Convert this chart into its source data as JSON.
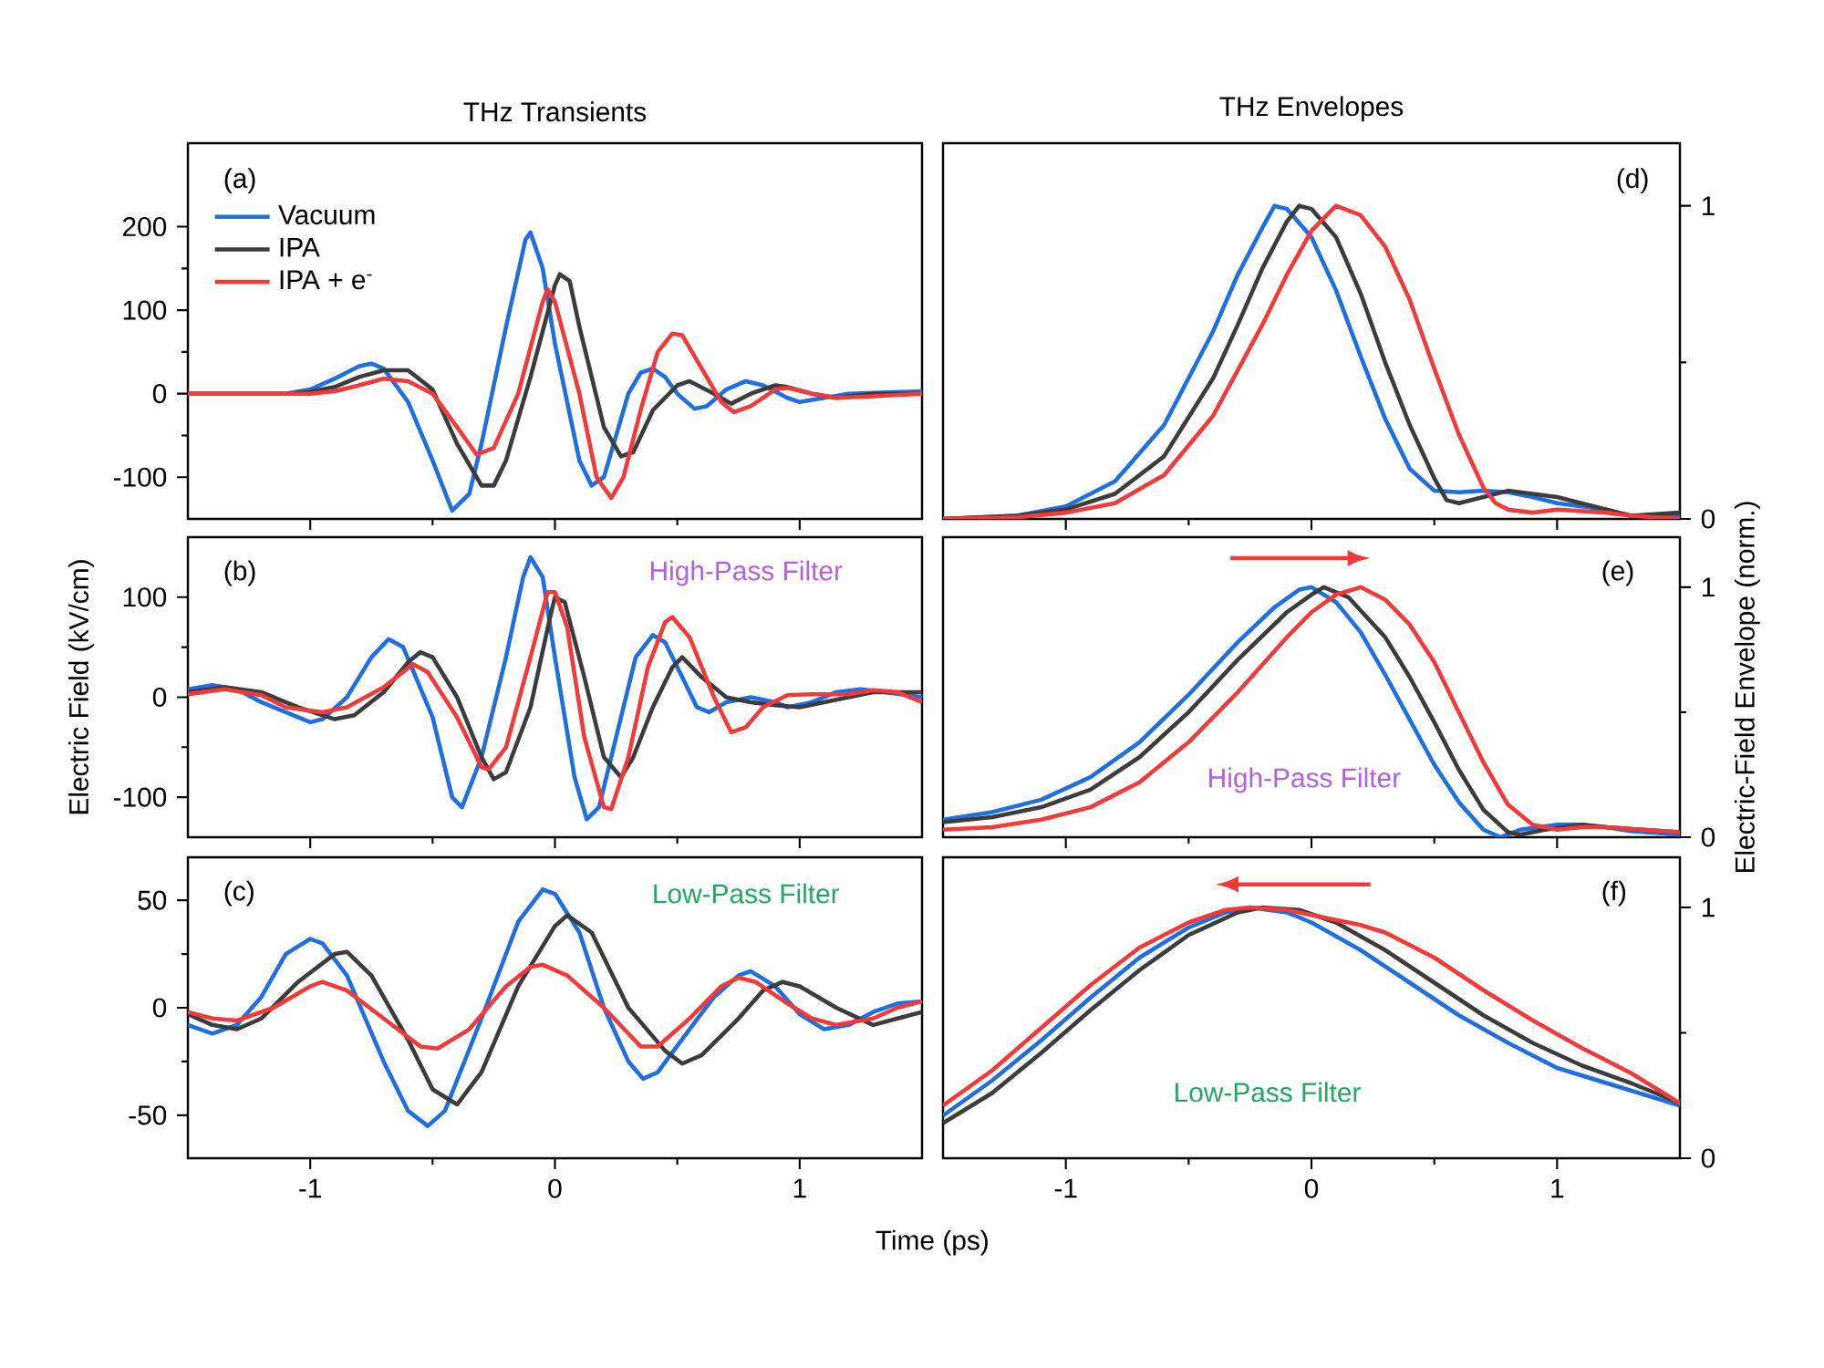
{
  "chart_data": [
    {
      "type": "line",
      "title": "THz Transients",
      "legend": "top left",
      "tick_labels": "y",
      "xlim": [
        -1.5,
        1.5
      ],
      "xticks": [
        -1,
        0,
        1
      ],
      "ylim": [
        -150,
        300
      ],
      "yticks": [
        -100,
        0,
        100,
        200
      ],
      "annotations": [
        "(a)"
      ],
      "series": [
        {
          "name": "Vacuum",
          "color": "#1f6fe0",
          "x": [
            -1.5,
            -1.1,
            -1.0,
            -0.9,
            -0.8,
            -0.75,
            -0.7,
            -0.6,
            -0.5,
            -0.42,
            -0.35,
            -0.3,
            -0.2,
            -0.12,
            -0.1,
            -0.05,
            0,
            0.1,
            0.15,
            0.2,
            0.3,
            0.35,
            0.4,
            0.45,
            0.5,
            0.57,
            0.62,
            0.7,
            0.78,
            0.85,
            0.95,
            1.0,
            1.1,
            1.2,
            1.5
          ],
          "values": [
            0,
            0,
            5,
            18,
            33,
            36,
            30,
            -10,
            -80,
            -140,
            -120,
            -60,
            80,
            185,
            193,
            150,
            60,
            -80,
            -110,
            -100,
            0,
            25,
            30,
            20,
            0,
            -18,
            -15,
            5,
            15,
            10,
            -5,
            -10,
            -5,
            0,
            3
          ]
        },
        {
          "name": "IPA",
          "color": "#3c3c3c",
          "x": [
            -1.5,
            -1.1,
            -1.0,
            -0.9,
            -0.8,
            -0.7,
            -0.6,
            -0.5,
            -0.4,
            -0.3,
            -0.25,
            -0.2,
            -0.1,
            0,
            0.02,
            0.06,
            0.1,
            0.2,
            0.27,
            0.32,
            0.4,
            0.5,
            0.55,
            0.65,
            0.72,
            0.8,
            0.9,
            0.95,
            1.05,
            1.15,
            1.3,
            1.5
          ],
          "values": [
            0,
            0,
            2,
            8,
            20,
            28,
            28,
            5,
            -60,
            -110,
            -110,
            -80,
            20,
            130,
            143,
            135,
            80,
            -40,
            -75,
            -70,
            -20,
            10,
            15,
            0,
            -12,
            0,
            10,
            8,
            0,
            -5,
            0,
            0
          ]
        },
        {
          "name": "IPA + e$^{-}$",
          "color": "#f23a3a",
          "x": [
            -1.5,
            -1.1,
            -1.0,
            -0.9,
            -0.8,
            -0.7,
            -0.6,
            -0.5,
            -0.4,
            -0.32,
            -0.25,
            -0.15,
            -0.05,
            -0.03,
            0,
            0.1,
            0.17,
            0.23,
            0.28,
            0.35,
            0.42,
            0.48,
            0.52,
            0.6,
            0.68,
            0.73,
            0.8,
            0.9,
            0.95,
            1.05,
            1.15,
            1.3,
            1.5
          ],
          "values": [
            0,
            0,
            0,
            3,
            10,
            18,
            15,
            0,
            -40,
            -73,
            -65,
            0,
            110,
            125,
            110,
            0,
            -100,
            -125,
            -100,
            -20,
            50,
            72,
            70,
            30,
            -10,
            -22,
            -15,
            5,
            7,
            0,
            -5,
            -3,
            0
          ]
        }
      ]
    },
    {
      "type": "line",
      "ylabel": "Electric Field (kV/cm)",
      "tick_labels": "y",
      "xlim": [
        -1.5,
        1.5
      ],
      "xticks": [
        -1,
        0,
        1
      ],
      "ylim": [
        -140,
        160
      ],
      "yticks": [
        -100,
        0,
        100
      ],
      "annotations": [
        "(b)",
        "High-Pass Filter"
      ],
      "series": [
        {
          "color": "#1f6fe0",
          "x": [
            -1.5,
            -1.4,
            -1.3,
            -1.2,
            -1.0,
            -0.95,
            -0.85,
            -0.75,
            -0.68,
            -0.62,
            -0.5,
            -0.42,
            -0.38,
            -0.3,
            -0.2,
            -0.13,
            -0.1,
            -0.05,
            0,
            0.08,
            0.13,
            0.18,
            0.25,
            0.33,
            0.4,
            0.45,
            0.52,
            0.58,
            0.63,
            0.7,
            0.8,
            0.9,
            0.95,
            1.05,
            1.15,
            1.25,
            1.35,
            1.5
          ],
          "values": [
            8,
            12,
            8,
            -5,
            -25,
            -22,
            0,
            40,
            58,
            50,
            -20,
            -100,
            -110,
            -60,
            40,
            120,
            140,
            120,
            40,
            -80,
            -122,
            -110,
            -40,
            40,
            62,
            55,
            20,
            -10,
            -15,
            -5,
            0,
            -5,
            -10,
            -5,
            5,
            8,
            5,
            0
          ]
        },
        {
          "color": "#3c3c3c",
          "x": [
            -1.5,
            -1.35,
            -1.2,
            -1.05,
            -0.9,
            -0.82,
            -0.7,
            -0.6,
            -0.55,
            -0.5,
            -0.4,
            -0.3,
            -0.25,
            -0.2,
            -0.1,
            -0.02,
            0,
            0.04,
            0.12,
            0.2,
            0.27,
            0.32,
            0.4,
            0.48,
            0.52,
            0.6,
            0.7,
            0.8,
            0.9,
            1.0,
            1.1,
            1.2,
            1.3,
            1.5
          ],
          "values": [
            5,
            10,
            5,
            -10,
            -22,
            -18,
            5,
            35,
            45,
            40,
            0,
            -60,
            -82,
            -75,
            -10,
            80,
            100,
            95,
            20,
            -60,
            -80,
            -60,
            -10,
            30,
            40,
            20,
            0,
            -5,
            -8,
            -10,
            -5,
            0,
            5,
            5
          ]
        },
        {
          "color": "#f23a3a",
          "x": [
            -1.5,
            -1.35,
            -1.2,
            -1.1,
            -0.95,
            -0.85,
            -0.7,
            -0.58,
            -0.52,
            -0.4,
            -0.3,
            -0.27,
            -0.2,
            -0.1,
            -0.03,
            0,
            0.05,
            0.12,
            0.2,
            0.23,
            0.3,
            0.38,
            0.45,
            0.48,
            0.55,
            0.65,
            0.72,
            0.78,
            0.85,
            0.95,
            1.05,
            1.2,
            1.3,
            1.4,
            1.5
          ],
          "values": [
            3,
            8,
            2,
            -10,
            -15,
            -10,
            10,
            33,
            25,
            -20,
            -70,
            -72,
            -50,
            40,
            105,
            105,
            70,
            -40,
            -110,
            -112,
            -60,
            30,
            75,
            80,
            60,
            0,
            -35,
            -30,
            -10,
            2,
            3,
            3,
            7,
            5,
            -5
          ]
        }
      ]
    },
    {
      "type": "line",
      "xlabel": "Time (ps)",
      "xlim": [
        -1.5,
        1.5
      ],
      "xticks": [
        -1,
        0,
        1
      ],
      "ylim": [
        -70,
        70
      ],
      "yticks": [
        -50,
        0,
        50
      ],
      "annotations": [
        "(c)",
        "Low-Pass Filter"
      ],
      "series": [
        {
          "color": "#1f6fe0",
          "x": [
            -1.5,
            -1.4,
            -1.3,
            -1.2,
            -1.1,
            -1.0,
            -0.95,
            -0.85,
            -0.7,
            -0.6,
            -0.52,
            -0.45,
            -0.3,
            -0.15,
            -0.05,
            0,
            0.1,
            0.2,
            0.3,
            0.36,
            0.42,
            0.55,
            0.65,
            0.75,
            0.8,
            0.9,
            1.0,
            1.1,
            1.2,
            1.3,
            1.4,
            1.5
          ],
          "values": [
            -8,
            -12,
            -8,
            5,
            25,
            32,
            30,
            15,
            -25,
            -48,
            -55,
            -48,
            -5,
            40,
            55,
            53,
            35,
            0,
            -25,
            -33,
            -30,
            -10,
            5,
            15,
            17,
            10,
            -3,
            -10,
            -8,
            -2,
            2,
            3
          ]
        },
        {
          "color": "#3c3c3c",
          "x": [
            -1.5,
            -1.4,
            -1.3,
            -1.2,
            -1.05,
            -0.9,
            -0.85,
            -0.75,
            -0.6,
            -0.5,
            -0.4,
            -0.3,
            -0.15,
            0,
            0.05,
            0.15,
            0.3,
            0.45,
            0.52,
            0.6,
            0.75,
            0.85,
            0.93,
            1.0,
            1.15,
            1.3,
            1.4,
            1.5
          ],
          "values": [
            -3,
            -8,
            -10,
            -5,
            12,
            25,
            26,
            15,
            -15,
            -38,
            -45,
            -30,
            10,
            38,
            43,
            35,
            0,
            -20,
            -26,
            -22,
            -5,
            8,
            12,
            10,
            0,
            -8,
            -5,
            -2
          ]
        },
        {
          "color": "#f23a3a",
          "x": [
            -1.5,
            -1.4,
            -1.3,
            -1.15,
            -1.0,
            -0.95,
            -0.85,
            -0.7,
            -0.55,
            -0.48,
            -0.35,
            -0.2,
            -0.1,
            -0.05,
            0.05,
            0.2,
            0.3,
            0.35,
            0.42,
            0.55,
            0.68,
            0.75,
            0.82,
            0.95,
            1.05,
            1.15,
            1.3,
            1.4,
            1.5
          ],
          "values": [
            -2,
            -5,
            -6,
            0,
            10,
            12,
            8,
            -5,
            -18,
            -19,
            -10,
            10,
            19,
            20,
            15,
            0,
            -12,
            -18,
            -18,
            -5,
            10,
            14,
            12,
            2,
            -5,
            -8,
            -5,
            0,
            3
          ]
        }
      ]
    },
    {
      "type": "line",
      "title": "THz Envelopes",
      "tick_labels": "y",
      "xlim": [
        -1.5,
        1.5
      ],
      "xticks": [
        -1,
        0,
        1
      ],
      "ylim": [
        0,
        1.2
      ],
      "yticks": [
        0,
        1
      ],
      "annotations": [
        "(d)"
      ],
      "series": [
        {
          "color": "#1f6fe0",
          "x": [
            -1.5,
            -1.2,
            -1.0,
            -0.8,
            -0.6,
            -0.4,
            -0.3,
            -0.2,
            -0.15,
            -0.1,
            0,
            0.1,
            0.2,
            0.3,
            0.4,
            0.5,
            0.6,
            0.7,
            0.8,
            0.9,
            1.0,
            1.2,
            1.3,
            1.5
          ],
          "values": [
            0,
            0.01,
            0.04,
            0.12,
            0.3,
            0.6,
            0.78,
            0.93,
            1.0,
            0.99,
            0.9,
            0.73,
            0.52,
            0.32,
            0.16,
            0.09,
            0.085,
            0.09,
            0.085,
            0.07,
            0.05,
            0.03,
            0.01,
            0.01
          ]
        },
        {
          "color": "#3c3c3c",
          "x": [
            -1.5,
            -1.2,
            -1.0,
            -0.8,
            -0.6,
            -0.4,
            -0.3,
            -0.2,
            -0.1,
            -0.05,
            0,
            0.1,
            0.2,
            0.3,
            0.4,
            0.5,
            0.55,
            0.6,
            0.7,
            0.8,
            0.9,
            1.0,
            1.2,
            1.3,
            1.5
          ],
          "values": [
            0,
            0.01,
            0.03,
            0.08,
            0.2,
            0.45,
            0.62,
            0.8,
            0.95,
            1.0,
            0.99,
            0.9,
            0.72,
            0.5,
            0.3,
            0.13,
            0.06,
            0.05,
            0.07,
            0.09,
            0.08,
            0.07,
            0.03,
            0.01,
            0.02
          ]
        },
        {
          "color": "#f23a3a",
          "x": [
            -1.5,
            -1.2,
            -1.0,
            -0.8,
            -0.6,
            -0.4,
            -0.2,
            -0.1,
            0,
            0.1,
            0.2,
            0.3,
            0.4,
            0.5,
            0.6,
            0.7,
            0.75,
            0.8,
            0.9,
            1.0,
            1.2,
            1.3,
            1.5
          ],
          "values": [
            0,
            0.005,
            0.02,
            0.05,
            0.14,
            0.33,
            0.62,
            0.78,
            0.92,
            1.0,
            0.97,
            0.87,
            0.7,
            0.48,
            0.27,
            0.1,
            0.05,
            0.03,
            0.02,
            0.03,
            0.02,
            0.01,
            0
          ]
        }
      ]
    },
    {
      "type": "line",
      "ylabel": "Electric-Field Envelope (norm.)",
      "tick_labels": "y",
      "xlim": [
        -1.5,
        1.5
      ],
      "xticks": [
        -1,
        0,
        1
      ],
      "ylim": [
        0,
        1.2
      ],
      "yticks": [
        0,
        1
      ],
      "annotations": [
        "(e)",
        "High-Pass Filter"
      ],
      "series": [
        {
          "color": "#1f6fe0",
          "x": [
            -1.5,
            -1.3,
            -1.1,
            -0.9,
            -0.7,
            -0.5,
            -0.3,
            -0.15,
            -0.05,
            0,
            0.1,
            0.2,
            0.3,
            0.4,
            0.5,
            0.6,
            0.7,
            0.77,
            0.85,
            1.0,
            1.1,
            1.2,
            1.3,
            1.5
          ],
          "values": [
            0.07,
            0.1,
            0.15,
            0.24,
            0.38,
            0.57,
            0.78,
            0.92,
            0.99,
            1.0,
            0.94,
            0.82,
            0.65,
            0.47,
            0.29,
            0.14,
            0.03,
            0,
            0.03,
            0.05,
            0.05,
            0.04,
            0.025,
            0.01
          ]
        },
        {
          "color": "#3c3c3c",
          "x": [
            -1.5,
            -1.3,
            -1.1,
            -0.9,
            -0.7,
            -0.5,
            -0.3,
            -0.1,
            0,
            0.05,
            0.15,
            0.3,
            0.4,
            0.5,
            0.6,
            0.7,
            0.8,
            0.85,
            0.95,
            1.1,
            1.2,
            1.35,
            1.5
          ],
          "values": [
            0.06,
            0.08,
            0.12,
            0.19,
            0.32,
            0.5,
            0.71,
            0.9,
            0.97,
            1.0,
            0.96,
            0.8,
            0.64,
            0.46,
            0.27,
            0.11,
            0.02,
            0.01,
            0.03,
            0.05,
            0.04,
            0.03,
            0.02
          ]
        },
        {
          "color": "#f23a3a",
          "x": [
            -1.5,
            -1.3,
            -1.1,
            -0.9,
            -0.7,
            -0.5,
            -0.3,
            -0.1,
            0,
            0.1,
            0.2,
            0.3,
            0.4,
            0.5,
            0.6,
            0.7,
            0.8,
            0.9,
            1.0,
            1.1,
            1.2,
            1.35,
            1.5
          ],
          "values": [
            0.03,
            0.04,
            0.07,
            0.12,
            0.22,
            0.38,
            0.58,
            0.8,
            0.9,
            0.97,
            1.0,
            0.95,
            0.85,
            0.7,
            0.5,
            0.3,
            0.13,
            0.05,
            0.03,
            0.04,
            0.04,
            0.03,
            0.02
          ]
        }
      ]
    },
    {
      "type": "line",
      "xlim": [
        -1.5,
        1.5
      ],
      "xticks": [
        -1,
        0,
        1
      ],
      "ylim": [
        0,
        1.2
      ],
      "yticks": [
        0,
        1
      ],
      "annotations": [
        "(f)",
        "Low-Pass Filter"
      ],
      "series": [
        {
          "color": "#1f6fe0",
          "x": [
            -1.5,
            -1.3,
            -1.1,
            -0.9,
            -0.7,
            -0.5,
            -0.35,
            -0.25,
            -0.1,
            0,
            0.2,
            0.4,
            0.6,
            0.8,
            1.0,
            1.2,
            1.4,
            1.5
          ],
          "values": [
            0.17,
            0.31,
            0.47,
            0.64,
            0.8,
            0.92,
            0.98,
            1.0,
            0.98,
            0.94,
            0.83,
            0.7,
            0.57,
            0.46,
            0.36,
            0.3,
            0.24,
            0.21
          ]
        },
        {
          "color": "#3c3c3c",
          "x": [
            -1.5,
            -1.3,
            -1.1,
            -0.9,
            -0.7,
            -0.5,
            -0.3,
            -0.2,
            -0.05,
            0.1,
            0.3,
            0.5,
            0.7,
            0.9,
            1.1,
            1.3,
            1.5
          ],
          "values": [
            0.14,
            0.26,
            0.42,
            0.59,
            0.75,
            0.89,
            0.98,
            1.0,
            0.99,
            0.94,
            0.83,
            0.7,
            0.57,
            0.46,
            0.37,
            0.3,
            0.22
          ]
        },
        {
          "color": "#f23a3a",
          "x": [
            -1.5,
            -1.3,
            -1.1,
            -0.9,
            -0.7,
            -0.5,
            -0.35,
            -0.25,
            -0.1,
            0,
            0.2,
            0.3,
            0.5,
            0.7,
            0.9,
            1.1,
            1.3,
            1.5
          ],
          "values": [
            0.21,
            0.35,
            0.52,
            0.69,
            0.84,
            0.94,
            0.99,
            1.0,
            0.99,
            0.97,
            0.93,
            0.9,
            0.8,
            0.67,
            0.55,
            0.44,
            0.34,
            0.22
          ]
        }
      ]
    }
  ]
}
